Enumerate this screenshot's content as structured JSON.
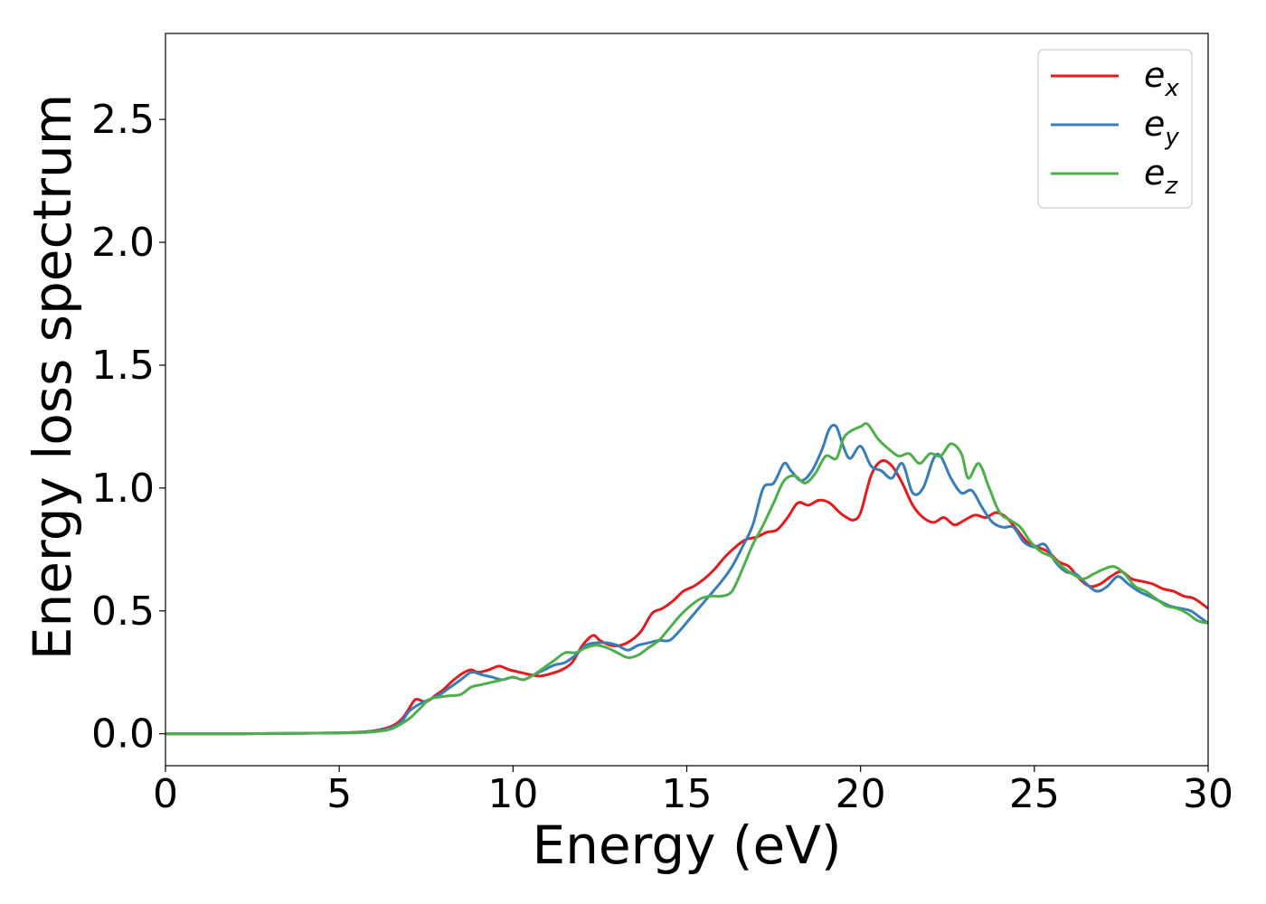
{
  "chart_data": {
    "type": "line",
    "xlabel": "Energy (eV)",
    "ylabel": "Energy loss spectrum",
    "xlim": [
      0,
      30
    ],
    "ylim": [
      -0.13,
      2.85
    ],
    "xticks": [
      0,
      5,
      10,
      15,
      20,
      25,
      30
    ],
    "yticks": [
      0.0,
      0.5,
      1.0,
      1.5,
      2.0,
      2.5
    ],
    "xtick_labels": [
      "0",
      "5",
      "10",
      "15",
      "20",
      "25",
      "30"
    ],
    "ytick_labels": [
      "0.0",
      "0.5",
      "1.0",
      "1.5",
      "2.0",
      "2.5"
    ],
    "grid": false,
    "legend_position": "top-right",
    "series": [
      {
        "name": "e_x",
        "label_base": "e",
        "label_sub": "x",
        "color": "#e41a1c",
        "x": [
          0,
          2,
          4,
          5,
          5.5,
          6,
          6.5,
          6.8,
          7.0,
          7.2,
          7.5,
          7.8,
          8.0,
          8.3,
          8.6,
          8.8,
          9.0,
          9.3,
          9.6,
          9.9,
          10.2,
          10.5,
          10.8,
          11.1,
          11.4,
          11.7,
          12.0,
          12.3,
          12.5,
          12.8,
          13.1,
          13.4,
          13.7,
          14.0,
          14.3,
          14.6,
          14.9,
          15.2,
          15.5,
          15.8,
          16.1,
          16.4,
          16.7,
          17.0,
          17.3,
          17.6,
          17.9,
          18.2,
          18.5,
          18.8,
          19.1,
          19.4,
          19.6,
          19.8,
          20.0,
          20.3,
          20.6,
          20.9,
          21.2,
          21.5,
          21.8,
          22.1,
          22.4,
          22.7,
          23.0,
          23.3,
          23.6,
          23.9,
          24.2,
          24.5,
          24.8,
          25.1,
          25.4,
          25.7,
          26.0,
          26.3,
          26.6,
          26.9,
          27.2,
          27.5,
          27.8,
          28.1,
          28.4,
          28.7,
          29.0,
          29.3,
          29.6,
          30.0
        ],
        "y": [
          0.0,
          0.0,
          0.002,
          0.004,
          0.006,
          0.012,
          0.03,
          0.06,
          0.1,
          0.14,
          0.13,
          0.16,
          0.18,
          0.22,
          0.25,
          0.26,
          0.25,
          0.26,
          0.275,
          0.26,
          0.25,
          0.24,
          0.235,
          0.245,
          0.26,
          0.29,
          0.36,
          0.4,
          0.38,
          0.36,
          0.36,
          0.38,
          0.42,
          0.49,
          0.51,
          0.54,
          0.58,
          0.6,
          0.63,
          0.67,
          0.72,
          0.76,
          0.79,
          0.8,
          0.82,
          0.83,
          0.88,
          0.94,
          0.93,
          0.95,
          0.94,
          0.9,
          0.88,
          0.87,
          0.9,
          1.05,
          1.11,
          1.09,
          1.02,
          0.93,
          0.88,
          0.86,
          0.88,
          0.85,
          0.87,
          0.89,
          0.88,
          0.9,
          0.88,
          0.83,
          0.78,
          0.76,
          0.74,
          0.7,
          0.68,
          0.63,
          0.6,
          0.61,
          0.64,
          0.66,
          0.63,
          0.62,
          0.61,
          0.59,
          0.58,
          0.56,
          0.55,
          0.51
        ]
      },
      {
        "name": "e_y",
        "label_base": "e",
        "label_sub": "y",
        "color": "#377eb8",
        "x": [
          0,
          2,
          4,
          5,
          5.5,
          6,
          6.5,
          6.8,
          7.0,
          7.3,
          7.6,
          7.9,
          8.2,
          8.5,
          8.8,
          9.1,
          9.4,
          9.7,
          10.0,
          10.3,
          10.6,
          10.9,
          11.2,
          11.5,
          11.8,
          12.1,
          12.4,
          12.7,
          13.0,
          13.3,
          13.6,
          13.9,
          14.2,
          14.5,
          14.8,
          15.1,
          15.4,
          15.7,
          16.0,
          16.3,
          16.6,
          16.9,
          17.2,
          17.5,
          17.8,
          18.0,
          18.3,
          18.6,
          18.9,
          19.1,
          19.3,
          19.5,
          19.7,
          20.0,
          20.3,
          20.6,
          20.9,
          21.2,
          21.5,
          21.8,
          22.1,
          22.3,
          22.6,
          22.9,
          23.2,
          23.5,
          23.8,
          24.1,
          24.4,
          24.7,
          25.0,
          25.3,
          25.6,
          25.9,
          26.2,
          26.5,
          26.8,
          27.1,
          27.4,
          27.7,
          28.0,
          28.3,
          28.6,
          28.9,
          29.2,
          29.5,
          29.8,
          30.0
        ],
        "y": [
          0.0,
          0.0,
          0.002,
          0.003,
          0.005,
          0.01,
          0.025,
          0.05,
          0.09,
          0.12,
          0.14,
          0.16,
          0.19,
          0.22,
          0.25,
          0.24,
          0.23,
          0.22,
          0.23,
          0.22,
          0.24,
          0.26,
          0.28,
          0.29,
          0.32,
          0.36,
          0.37,
          0.37,
          0.36,
          0.34,
          0.36,
          0.37,
          0.38,
          0.38,
          0.42,
          0.47,
          0.52,
          0.57,
          0.62,
          0.68,
          0.76,
          0.85,
          1.0,
          1.02,
          1.1,
          1.07,
          1.03,
          1.07,
          1.16,
          1.24,
          1.25,
          1.17,
          1.12,
          1.17,
          1.09,
          1.07,
          1.04,
          1.1,
          0.98,
          1.0,
          1.12,
          1.13,
          1.04,
          0.98,
          0.99,
          0.92,
          0.86,
          0.84,
          0.84,
          0.78,
          0.76,
          0.77,
          0.7,
          0.66,
          0.65,
          0.61,
          0.58,
          0.6,
          0.64,
          0.61,
          0.58,
          0.56,
          0.54,
          0.52,
          0.51,
          0.5,
          0.47,
          0.45
        ]
      },
      {
        "name": "e_z",
        "label_base": "e",
        "label_sub": "z",
        "color": "#4daf4a",
        "x": [
          0,
          2,
          4,
          5,
          5.5,
          6,
          6.5,
          7.0,
          7.3,
          7.6,
          7.9,
          8.2,
          8.5,
          8.8,
          9.1,
          9.4,
          9.7,
          10.0,
          10.3,
          10.6,
          10.9,
          11.2,
          11.5,
          11.8,
          12.1,
          12.4,
          12.7,
          13.0,
          13.3,
          13.6,
          13.9,
          14.2,
          14.5,
          14.8,
          15.1,
          15.4,
          15.7,
          16.0,
          16.3,
          16.6,
          16.9,
          17.2,
          17.5,
          17.8,
          18.1,
          18.4,
          18.7,
          19.0,
          19.3,
          19.5,
          19.7,
          20.0,
          20.2,
          20.5,
          20.8,
          21.1,
          21.4,
          21.7,
          22.0,
          22.3,
          22.6,
          22.9,
          23.1,
          23.4,
          23.7,
          24.0,
          24.3,
          24.6,
          24.9,
          25.2,
          25.5,
          25.8,
          26.1,
          26.4,
          26.7,
          27.0,
          27.3,
          27.6,
          27.9,
          28.2,
          28.5,
          28.8,
          29.1,
          29.4,
          29.7,
          30.0
        ],
        "y": [
          0.0,
          0.0,
          0.002,
          0.003,
          0.004,
          0.008,
          0.02,
          0.06,
          0.1,
          0.14,
          0.15,
          0.155,
          0.16,
          0.19,
          0.2,
          0.21,
          0.22,
          0.23,
          0.22,
          0.24,
          0.27,
          0.3,
          0.33,
          0.33,
          0.35,
          0.36,
          0.35,
          0.33,
          0.31,
          0.32,
          0.35,
          0.38,
          0.43,
          0.48,
          0.52,
          0.55,
          0.56,
          0.56,
          0.58,
          0.67,
          0.77,
          0.85,
          0.94,
          1.03,
          1.05,
          1.02,
          1.06,
          1.13,
          1.12,
          1.2,
          1.23,
          1.25,
          1.26,
          1.2,
          1.16,
          1.13,
          1.14,
          1.1,
          1.14,
          1.13,
          1.18,
          1.14,
          1.04,
          1.1,
          1.0,
          0.9,
          0.87,
          0.84,
          0.78,
          0.74,
          0.72,
          0.68,
          0.65,
          0.63,
          0.65,
          0.67,
          0.68,
          0.65,
          0.6,
          0.58,
          0.55,
          0.52,
          0.51,
          0.49,
          0.46,
          0.45
        ]
      }
    ]
  }
}
